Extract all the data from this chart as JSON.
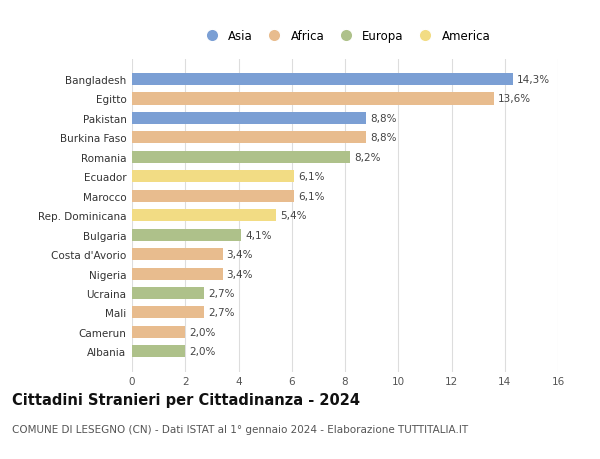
{
  "categories": [
    "Bangladesh",
    "Egitto",
    "Pakistan",
    "Burkina Faso",
    "Romania",
    "Ecuador",
    "Marocco",
    "Rep. Dominicana",
    "Bulgaria",
    "Costa d'Avorio",
    "Nigeria",
    "Ucraina",
    "Mali",
    "Camerun",
    "Albania"
  ],
  "values": [
    14.3,
    13.6,
    8.8,
    8.8,
    8.2,
    6.1,
    6.1,
    5.4,
    4.1,
    3.4,
    3.4,
    2.7,
    2.7,
    2.0,
    2.0
  ],
  "labels": [
    "14,3%",
    "13,6%",
    "8,8%",
    "8,8%",
    "8,2%",
    "6,1%",
    "6,1%",
    "5,4%",
    "4,1%",
    "3,4%",
    "3,4%",
    "2,7%",
    "2,7%",
    "2,0%",
    "2,0%"
  ],
  "continents": [
    "Asia",
    "Africa",
    "Asia",
    "Africa",
    "Europa",
    "America",
    "Africa",
    "America",
    "Europa",
    "Africa",
    "Africa",
    "Europa",
    "Africa",
    "Africa",
    "Europa"
  ],
  "colors": {
    "Asia": "#7b9fd4",
    "Africa": "#e8bc8e",
    "Europa": "#aec18a",
    "America": "#f2dc84"
  },
  "legend_order": [
    "Asia",
    "Africa",
    "Europa",
    "America"
  ],
  "xlim": [
    0,
    16
  ],
  "xticks": [
    0,
    2,
    4,
    6,
    8,
    10,
    12,
    14,
    16
  ],
  "title": "Cittadini Stranieri per Cittadinanza - 2024",
  "subtitle": "COMUNE DI LESEGNO (CN) - Dati ISTAT al 1° gennaio 2024 - Elaborazione TUTTITALIA.IT",
  "background_color": "#ffffff",
  "grid_color": "#dddddd",
  "bar_height": 0.62,
  "label_fontsize": 7.5,
  "title_fontsize": 10.5,
  "subtitle_fontsize": 7.5,
  "ytick_fontsize": 7.5,
  "xtick_fontsize": 7.5,
  "legend_fontsize": 8.5
}
